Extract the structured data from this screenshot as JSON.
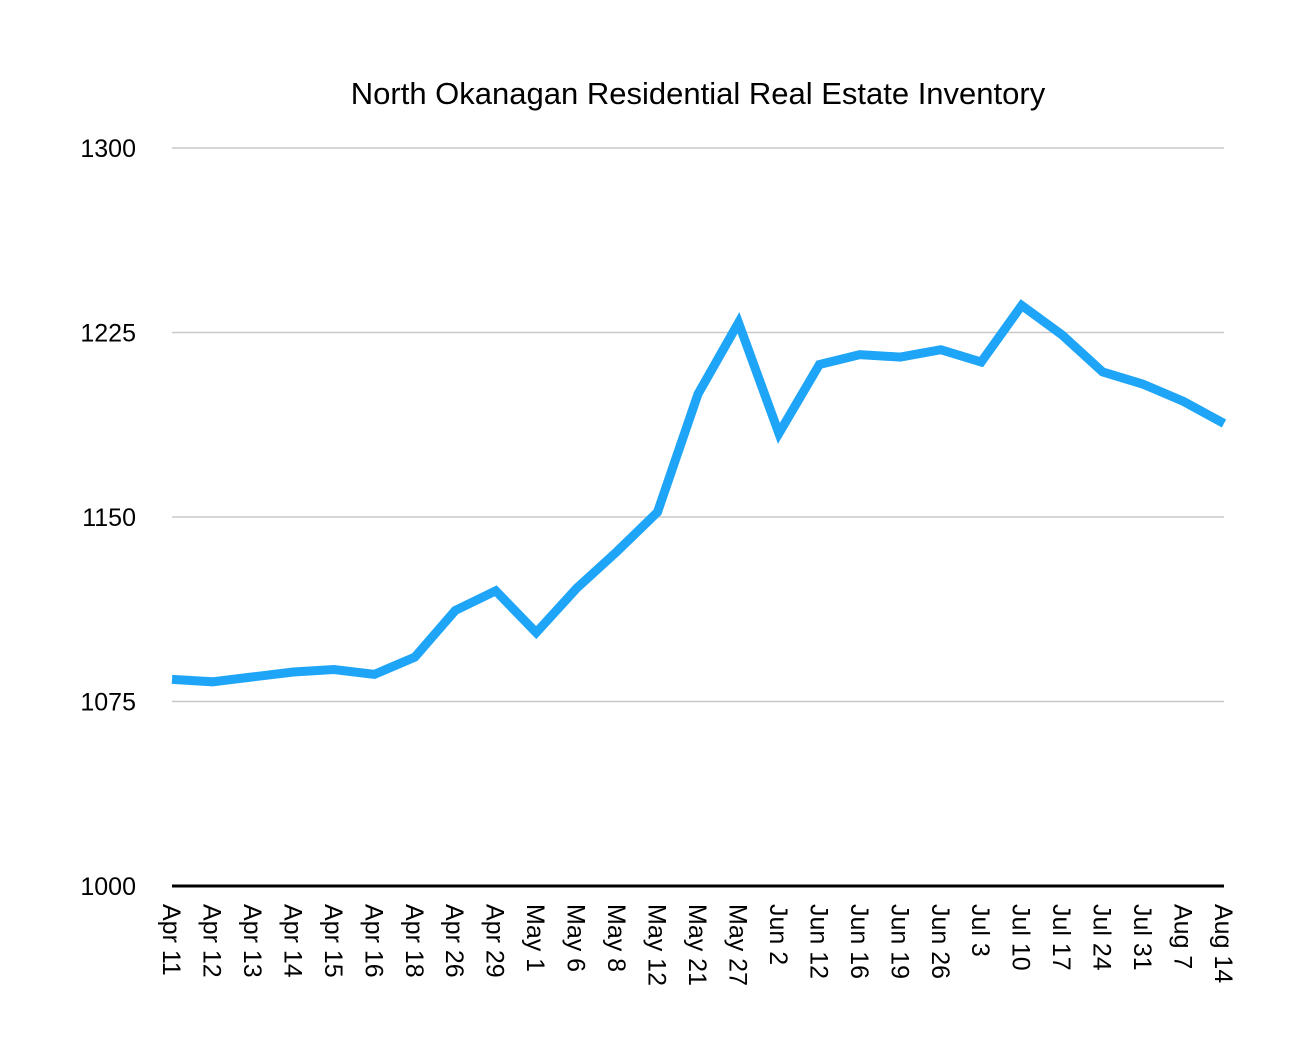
{
  "chart_data": {
    "type": "line",
    "title": "North Okanagan Residential Real Estate Inventory",
    "xlabel": "",
    "ylabel": "",
    "ylim": [
      1000,
      1300
    ],
    "yticks": [
      "1000",
      "1075",
      "1150",
      "1225",
      "1300"
    ],
    "yticks_values": [
      1000,
      1075,
      1150,
      1225,
      1300
    ],
    "grid": true,
    "legend": "none",
    "categories": [
      "Apr 11",
      "Apr 12",
      "Apr 13",
      "Apr 14",
      "Apr 15",
      "Apr 16",
      "Apr 18",
      "Apr 26",
      "Apr 29",
      "May 1",
      "May 6",
      "May 8",
      "May 12",
      "May 21",
      "May 27",
      "Jun 2",
      "Jun 12",
      "Jun 16",
      "Jun 19",
      "Jun 26",
      "Jul 3",
      "Jul 10",
      "Jul 17",
      "Jul 24",
      "Jul 31",
      "Aug 7",
      "Aug 14"
    ],
    "series": [
      {
        "color": "#1fa5f7",
        "values": [
          1084,
          1083,
          1085,
          1087,
          1088,
          1086,
          1093,
          1112,
          1120,
          1103,
          1121,
          1136,
          1152,
          1200,
          1229,
          1184,
          1212,
          1216,
          1215,
          1218,
          1213,
          1236,
          1224,
          1209,
          1204,
          1197,
          1188
        ]
      }
    ]
  }
}
